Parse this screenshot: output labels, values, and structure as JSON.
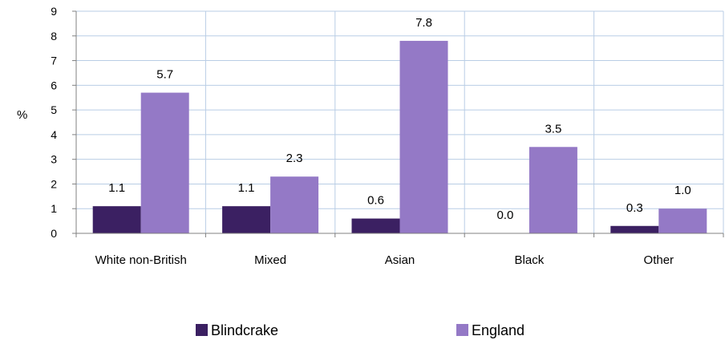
{
  "chart_data": {
    "type": "bar",
    "title": "",
    "xlabel": "",
    "ylabel": "%",
    "ylim": [
      0,
      9
    ],
    "yticks": [
      0,
      1,
      2,
      3,
      4,
      5,
      6,
      7,
      8,
      9
    ],
    "grid": true,
    "legend_position": "bottom",
    "categories": [
      "White non-British",
      "Mixed",
      "Asian",
      "Black",
      "Other"
    ],
    "series": [
      {
        "name": "Blindcrake",
        "color": "#3b2062",
        "values": [
          1.1,
          1.1,
          0.6,
          0.0,
          0.3
        ],
        "labels": [
          "1.1",
          "1.1",
          "0.6",
          "0.0",
          "0.3"
        ]
      },
      {
        "name": "England",
        "color": "#9479c6",
        "values": [
          5.7,
          2.3,
          7.8,
          3.5,
          1.0
        ],
        "labels": [
          "5.7",
          "2.3",
          "7.8",
          "3.5",
          "1.0"
        ]
      }
    ]
  }
}
